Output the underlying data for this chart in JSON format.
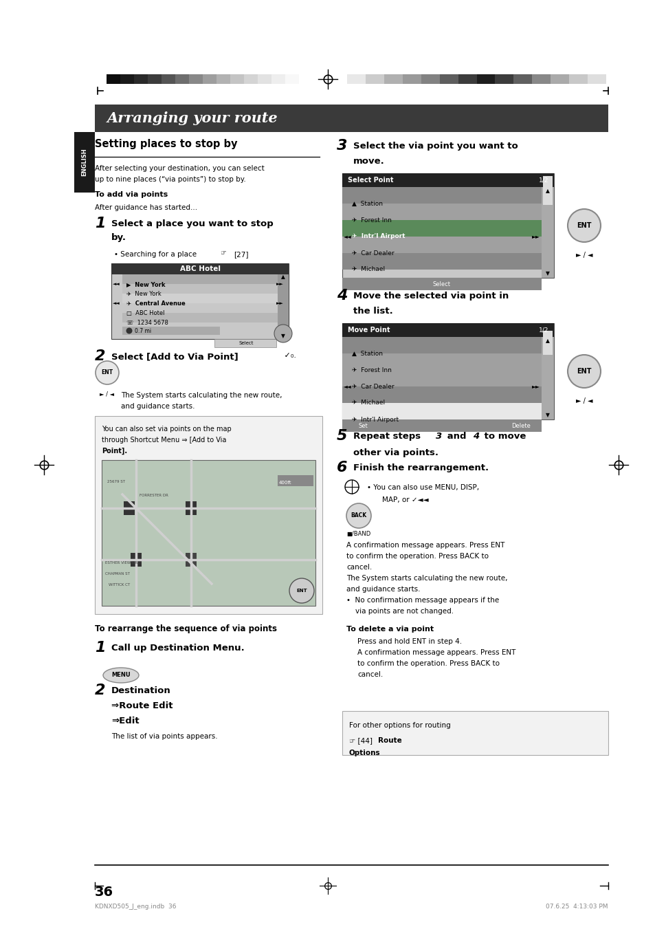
{
  "bg_color": "#ffffff",
  "page_width": 9.54,
  "page_height": 13.51,
  "title_bar_color": "#3a3a3a",
  "title_text": "Arranging your route",
  "title_text_color": "#ffffff",
  "english_tab_color": "#1a1a1a",
  "english_tab_text": "ENGLISH",
  "section_title": "Setting places to stop by",
  "page_number": "36",
  "footer_left": "KDNXD505_J_eng.indb  36",
  "footer_right": "07.6.25  4:13:03 PM",
  "lm": 1.38,
  "rm": 8.85,
  "col_split": 4.77
}
